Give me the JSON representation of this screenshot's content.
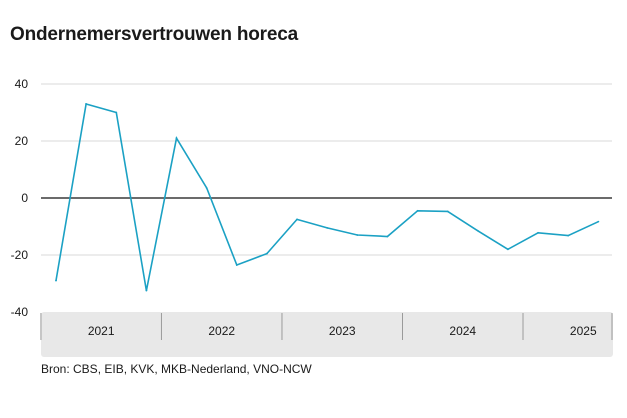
{
  "chart_data": {
    "type": "line",
    "title": "Ondernemersvertrouwen horeca",
    "source": "Bron: CBS, EIB, KVK, MKB-Nederland, VNO-NCW",
    "xlabel": "",
    "ylabel": "",
    "ylim": [
      -40,
      40
    ],
    "yticks": [
      40,
      20,
      0,
      -20,
      -40
    ],
    "grid": true,
    "legend": "none",
    "colors": {
      "line": "#1ba1c4",
      "zero_line": "#3a3a3a",
      "grid": "#d9d9d9",
      "axis_band": "#e8e8e8"
    },
    "years": [
      "2021",
      "2022",
      "2023",
      "2024",
      "2025"
    ],
    "x": [
      "2021-Q1",
      "2021-Q2",
      "2021-Q3",
      "2021-Q4",
      "2022-Q1",
      "2022-Q2",
      "2022-Q3",
      "2022-Q4",
      "2023-Q1",
      "2023-Q2",
      "2023-Q3",
      "2023-Q4",
      "2024-Q1",
      "2024-Q2",
      "2024-Q3",
      "2024-Q4",
      "2025-Q1",
      "2025-Q2",
      "2025-Q3"
    ],
    "series": [
      {
        "values": [
          -29,
          33,
          30,
          -32.5,
          21,
          3.5,
          -23.5,
          -19.5,
          -7.5,
          -10.5,
          -13,
          -13.5,
          -4.5,
          -4.7,
          -11.5,
          -18,
          -12.2,
          -13.2,
          -8.3
        ]
      }
    ]
  }
}
